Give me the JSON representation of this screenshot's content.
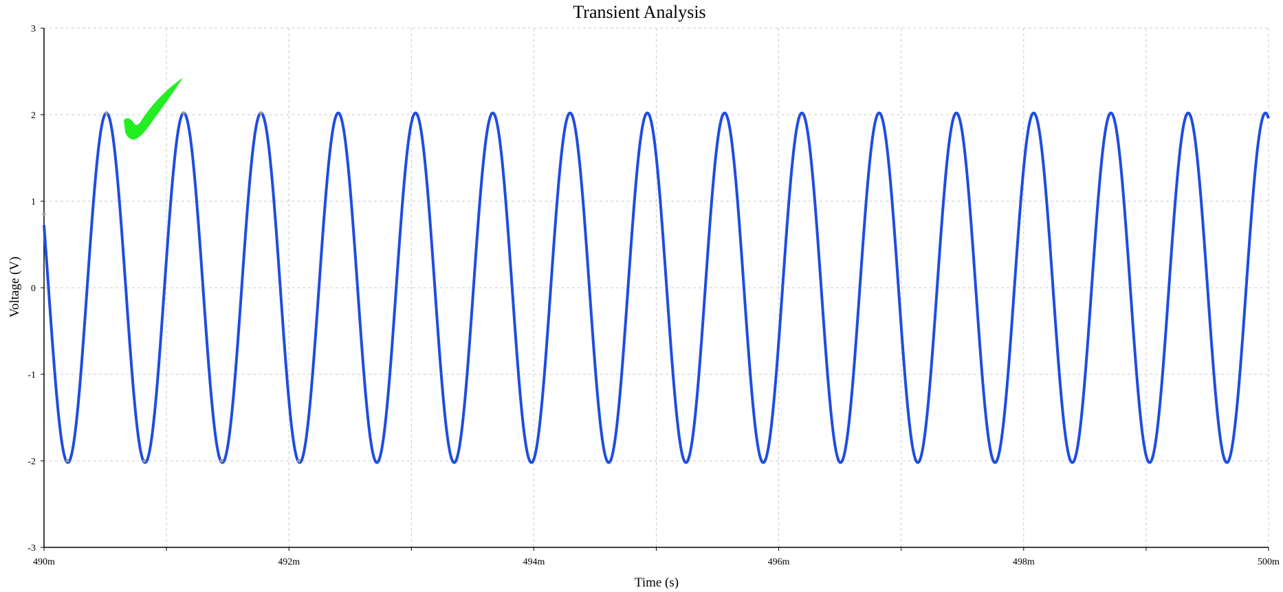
{
  "chart_data": {
    "type": "line",
    "title": "Transient Analysis",
    "xlabel": "Time (s)",
    "ylabel": "Voltage (V)",
    "xlim": [
      0.49,
      0.5
    ],
    "ylim": [
      -3,
      3
    ],
    "x_tick_values": [
      0.49,
      0.491,
      0.492,
      0.493,
      0.494,
      0.495,
      0.496,
      0.497,
      0.498,
      0.499,
      0.5
    ],
    "x_tick_labels": [
      "490m",
      "",
      "492m",
      "",
      "494m",
      "",
      "496m",
      "",
      "498m",
      "",
      "500m"
    ],
    "y_tick_values": [
      -3,
      -2,
      -1,
      0,
      1,
      2,
      3
    ],
    "y_tick_labels": [
      "-3",
      "-2",
      "-1",
      "0",
      "1",
      "2",
      "3"
    ],
    "grid": true,
    "series": [
      {
        "color": "#1f4de0",
        "waveform": "sine",
        "amplitude": 2.02,
        "offset": 0.0,
        "period": 0.000631,
        "first_peak_time": 0.49051,
        "x": [
          0.49,
          0.49019,
          0.49051,
          0.49082,
          0.49114,
          0.49145,
          0.49177,
          0.49208
        ],
        "y": [
          0.85,
          -2.0,
          2.02,
          -2.0,
          2.02,
          -2.0,
          2.02,
          -2.0
        ]
      }
    ],
    "annotation": {
      "type": "checkmark",
      "color": "#22ee22",
      "position": "top-left"
    }
  }
}
